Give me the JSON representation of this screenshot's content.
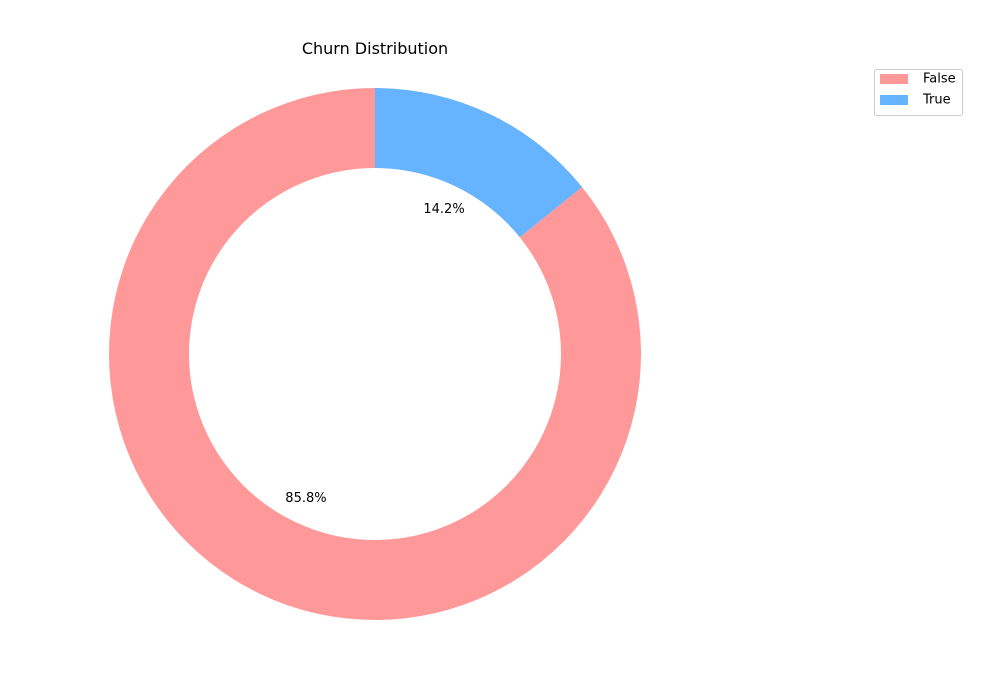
{
  "chart_data": {
    "type": "pie",
    "style": "donut",
    "title": "Churn Distribution",
    "categories": [
      "False",
      "True"
    ],
    "values": [
      85.8,
      14.2
    ],
    "labels": [
      "85.8%",
      "14.2%"
    ],
    "colors": [
      "#ff9999",
      "#66b3ff"
    ],
    "start_angle_deg": 90,
    "direction": "counterclockwise",
    "legend": {
      "position": "top-right",
      "entries": [
        "False",
        "True"
      ]
    }
  }
}
